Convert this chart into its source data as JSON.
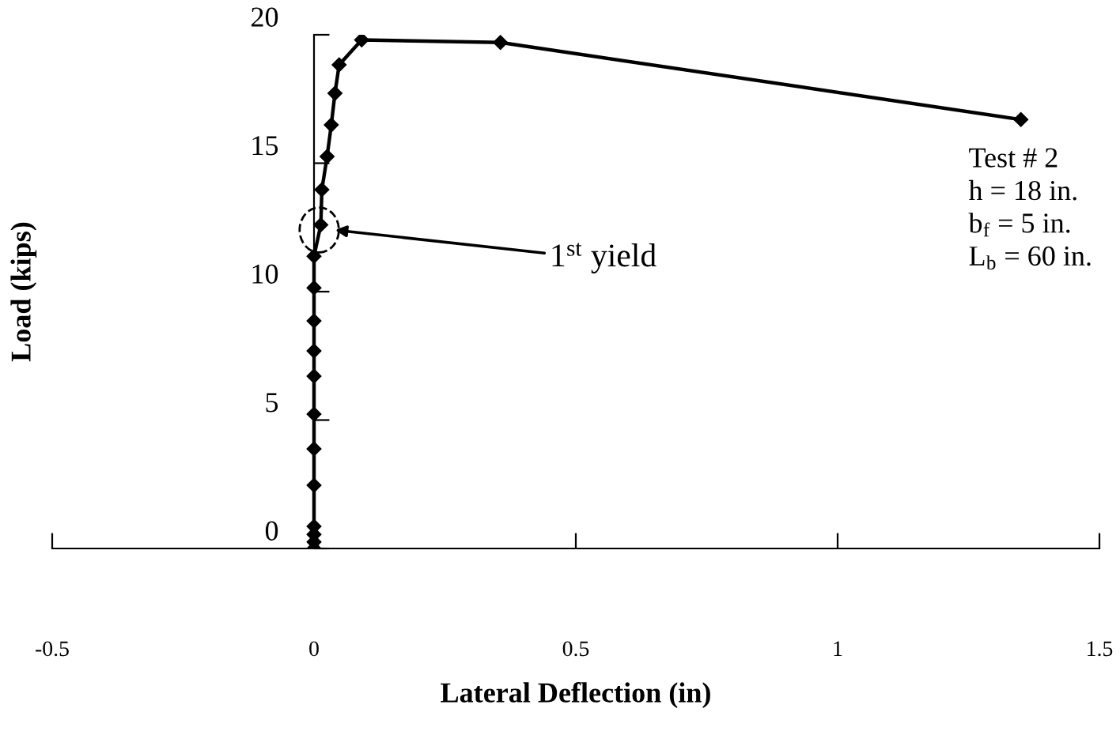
{
  "chart_data": {
    "type": "line",
    "xlabel": "Lateral Deflection (in)",
    "ylabel": "Load (kips)",
    "x": [
      0,
      0,
      0,
      0,
      0,
      0,
      0,
      0,
      0,
      0,
      0,
      0,
      0.013,
      0.015,
      0.025,
      0.033,
      0.04,
      0.048,
      0.091,
      0.356,
      1.35
    ],
    "values": [
      0,
      0.25,
      0.55,
      0.86,
      2.46,
      3.88,
      5.23,
      6.71,
      7.69,
      8.86,
      10.15,
      11.38,
      12.6,
      13.97,
      15.26,
      16.49,
      17.72,
      18.83,
      19.8,
      19.7,
      16.7
    ],
    "color": "#000000",
    "marker": "diamond",
    "line_style": "solid",
    "grid": false,
    "legend": false,
    "xlim": [
      -0.5,
      1.5
    ],
    "xticks": [
      -0.5,
      0,
      0.5,
      1,
      1.5
    ],
    "ylim": [
      0,
      20
    ],
    "yticks": [
      0,
      5,
      10,
      15,
      20
    ],
    "annotations": [
      "1$^{st}$ yield",
      "Test # 2\nh = 18 in.\nb$_{f}$ = 5 in.\nL$_{b}$ = 60 in."
    ]
  }
}
